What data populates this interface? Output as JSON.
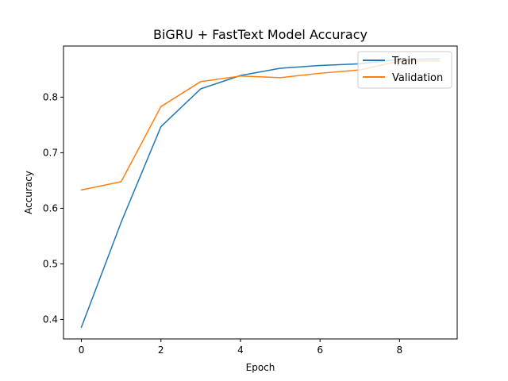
{
  "chart_data": {
    "type": "line",
    "title": "BiGRU + FastText Model Accuracy",
    "xlabel": "Epoch",
    "ylabel": "Accuracy",
    "x": [
      0,
      1,
      2,
      3,
      4,
      5,
      6,
      7,
      8,
      9
    ],
    "xlim": [
      -0.45,
      9.45
    ],
    "ylim": [
      0.365,
      0.892
    ],
    "xticks": [
      0,
      2,
      4,
      6,
      8
    ],
    "yticks": [
      0.4,
      0.5,
      0.6,
      0.7,
      0.8
    ],
    "grid": false,
    "legend_position": "upper right",
    "series": [
      {
        "name": "Train",
        "color": "#1f77b4",
        "values": [
          0.386,
          0.575,
          0.747,
          0.815,
          0.839,
          0.852,
          0.857,
          0.86,
          0.868,
          0.869
        ]
      },
      {
        "name": "Validation",
        "color": "#ff7f0e",
        "values": [
          0.633,
          0.648,
          0.783,
          0.828,
          0.838,
          0.835,
          0.843,
          0.849,
          0.865,
          0.865
        ]
      }
    ]
  }
}
